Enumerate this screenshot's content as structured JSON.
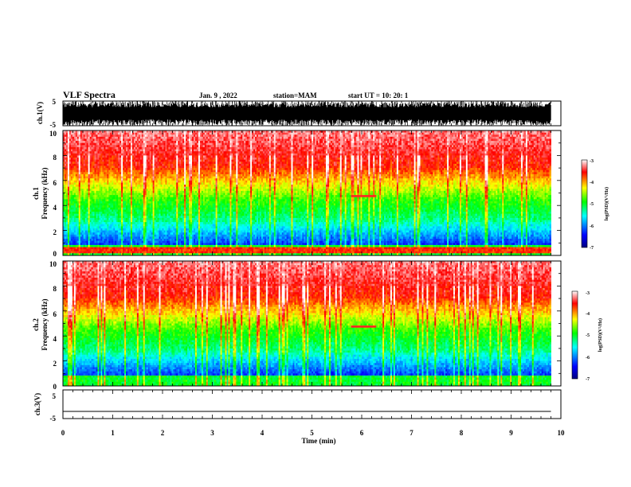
{
  "header": {
    "title": "VLF Spectra",
    "date": "Jan. 9 , 2022",
    "station": "station=MAM",
    "start": "start UT =   10: 20: 1"
  },
  "chart_data": [
    {
      "type": "line",
      "panel": "waveform-1",
      "ylabel": "ch.1(V)",
      "ylim": [
        -5,
        5
      ],
      "yticks": [
        "5",
        "-5"
      ],
      "xlim": [
        0,
        10
      ]
    },
    {
      "type": "heatmap",
      "panel": "spectrogram-1",
      "ylabel_line1": "ch.1",
      "ylabel_line2": "Frequency (kHz)",
      "ylim": [
        0,
        10
      ],
      "yticks": [
        "0",
        "2",
        "4",
        "6",
        "8",
        "10"
      ],
      "xlim": [
        0,
        10
      ],
      "data_extent_min": 9.8,
      "colorbar": {
        "label": "log(PSD)(V²/Hz)",
        "range": [
          -7,
          -3
        ],
        "ticks": [
          "-3",
          "-4",
          "-5",
          "-6",
          "-7"
        ]
      },
      "features": {
        "emission_band_khz": [
          4.6,
          4.9
        ],
        "emission_time_min": [
          5.8,
          6.3
        ],
        "low_freq_line_khz": 0.4
      }
    },
    {
      "type": "heatmap",
      "panel": "spectrogram-2",
      "ylabel_line1": "ch.2",
      "ylabel_line2": "Frequency (kHz)",
      "ylim": [
        0,
        10
      ],
      "yticks": [
        "0",
        "2",
        "4",
        "6",
        "8",
        "10"
      ],
      "xlim": [
        0,
        10
      ],
      "data_extent_min": 9.8,
      "colorbar": {
        "label": "log(PSD)(V²/Hz)",
        "range": [
          -7,
          -3
        ],
        "ticks": [
          "-3",
          "-4",
          "-5",
          "-6",
          "-7"
        ]
      },
      "features": {
        "emission_band_khz": [
          4.6,
          4.9
        ],
        "emission_time_min": [
          5.8,
          6.3
        ]
      }
    },
    {
      "type": "line",
      "panel": "waveform-3",
      "ylabel": "ch.3(V)",
      "ylim": [
        -5,
        5
      ],
      "yticks": [
        "5",
        "-5"
      ],
      "xlim": [
        0,
        10
      ],
      "constant_value": -2.5
    }
  ],
  "xaxis": {
    "label": "Time (min)",
    "ticks": [
      "0",
      "1",
      "2",
      "3",
      "4",
      "5",
      "6",
      "7",
      "8",
      "9",
      "10"
    ]
  },
  "colors": {
    "scale": [
      "#000080",
      "#0000ff",
      "#00ffff",
      "#00ff00",
      "#ffff00",
      "#ff0000",
      "#ffffff"
    ]
  }
}
